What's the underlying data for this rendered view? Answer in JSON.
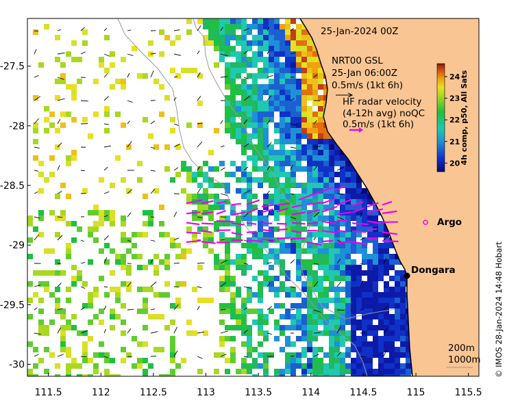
{
  "title": "25-Jan-2024 00Z",
  "model_label": "NRT00 GSL",
  "model_time": "25-Jan 06:00Z",
  "model_scale": "0.5m/s (1kt 6h)",
  "hf_title": "HF radar velocity",
  "hf_subtitle": "(4-12h avg) noQC",
  "hf_scale": "0.5m/s (1kt 6h)",
  "colorbar": {
    "label": "4h comp, p50, All Sats",
    "ticks": [
      "24",
      "23",
      "22",
      "21",
      "20"
    ],
    "min": 19.6,
    "max": 24.6
  },
  "places": {
    "argo": "Argo",
    "dongara": "Dongara"
  },
  "contours": {
    "c200": "200m",
    "c1000": "1000m"
  },
  "credit": "© IMOS 28-Jan-2024 14:48 Hobart",
  "axes": {
    "x_ticks": [
      "111.5",
      "112",
      "112.5",
      "113",
      "113.5",
      "114",
      "114.5",
      "115",
      "115.5"
    ],
    "y_ticks": [
      "-27.5",
      "-28",
      "-28.5",
      "-29",
      "-29.5",
      "-30"
    ],
    "lon_range": [
      111.3,
      115.6
    ],
    "lat_range": [
      -30.1,
      -27.1
    ]
  },
  "colors": {
    "land": "#f9c593",
    "hf_arrow": "#ee00ee",
    "coast": "#000000"
  }
}
